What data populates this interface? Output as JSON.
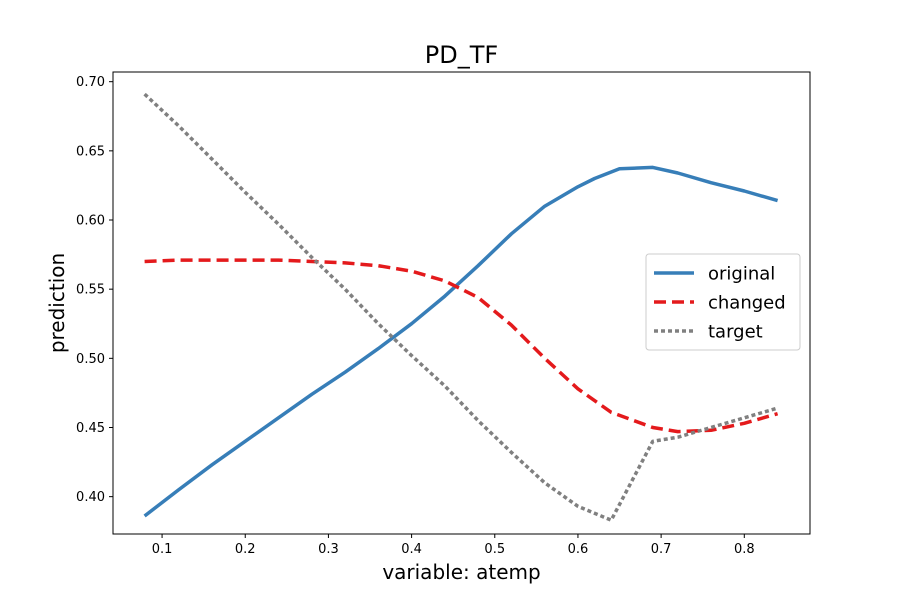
{
  "chart_data": {
    "type": "line",
    "title": "PD_TF",
    "xlabel": "variable: atemp",
    "ylabel": "prediction",
    "xlim": [
      0.041,
      0.879
    ],
    "ylim": [
      0.373,
      0.707
    ],
    "xticks": [
      0.1,
      0.2,
      0.3,
      0.4,
      0.5,
      0.6,
      0.7,
      0.8
    ],
    "xtick_labels": [
      "0.1",
      "0.2",
      "0.3",
      "0.4",
      "0.5",
      "0.6",
      "0.7",
      "0.8"
    ],
    "yticks": [
      0.4,
      0.45,
      0.5,
      0.55,
      0.6,
      0.65,
      0.7
    ],
    "ytick_labels": [
      "0.40",
      "0.45",
      "0.50",
      "0.55",
      "0.60",
      "0.65",
      "0.70"
    ],
    "grid": false,
    "legend_position": "right",
    "series": [
      {
        "name": "original",
        "color": "#377eb8",
        "style": "solid",
        "x": [
          0.079,
          0.12,
          0.16,
          0.2,
          0.24,
          0.28,
          0.32,
          0.36,
          0.4,
          0.44,
          0.48,
          0.52,
          0.56,
          0.6,
          0.62,
          0.65,
          0.69,
          0.72,
          0.76,
          0.8,
          0.84
        ],
        "y": [
          0.386,
          0.405,
          0.423,
          0.44,
          0.457,
          0.474,
          0.49,
          0.507,
          0.525,
          0.545,
          0.567,
          0.59,
          0.61,
          0.624,
          0.63,
          0.637,
          0.638,
          0.634,
          0.627,
          0.621,
          0.614
        ]
      },
      {
        "name": "changed",
        "color": "#e41a1c",
        "style": "dashed",
        "x": [
          0.079,
          0.12,
          0.16,
          0.2,
          0.24,
          0.28,
          0.32,
          0.36,
          0.4,
          0.44,
          0.48,
          0.52,
          0.56,
          0.6,
          0.64,
          0.69,
          0.72,
          0.76,
          0.8,
          0.84
        ],
        "y": [
          0.57,
          0.571,
          0.571,
          0.571,
          0.571,
          0.57,
          0.569,
          0.567,
          0.563,
          0.556,
          0.544,
          0.524,
          0.5,
          0.478,
          0.461,
          0.45,
          0.447,
          0.448,
          0.453,
          0.46
        ]
      },
      {
        "name": "target",
        "color": "#808080",
        "style": "dotted",
        "x": [
          0.079,
          0.12,
          0.16,
          0.2,
          0.24,
          0.28,
          0.32,
          0.36,
          0.4,
          0.44,
          0.48,
          0.52,
          0.56,
          0.6,
          0.64,
          0.69,
          0.72,
          0.76,
          0.8,
          0.84
        ],
        "y": [
          0.691,
          0.668,
          0.644,
          0.62,
          0.597,
          0.573,
          0.55,
          0.525,
          0.502,
          0.48,
          0.455,
          0.432,
          0.41,
          0.393,
          0.383,
          0.44,
          0.443,
          0.45,
          0.457,
          0.464
        ]
      }
    ]
  }
}
